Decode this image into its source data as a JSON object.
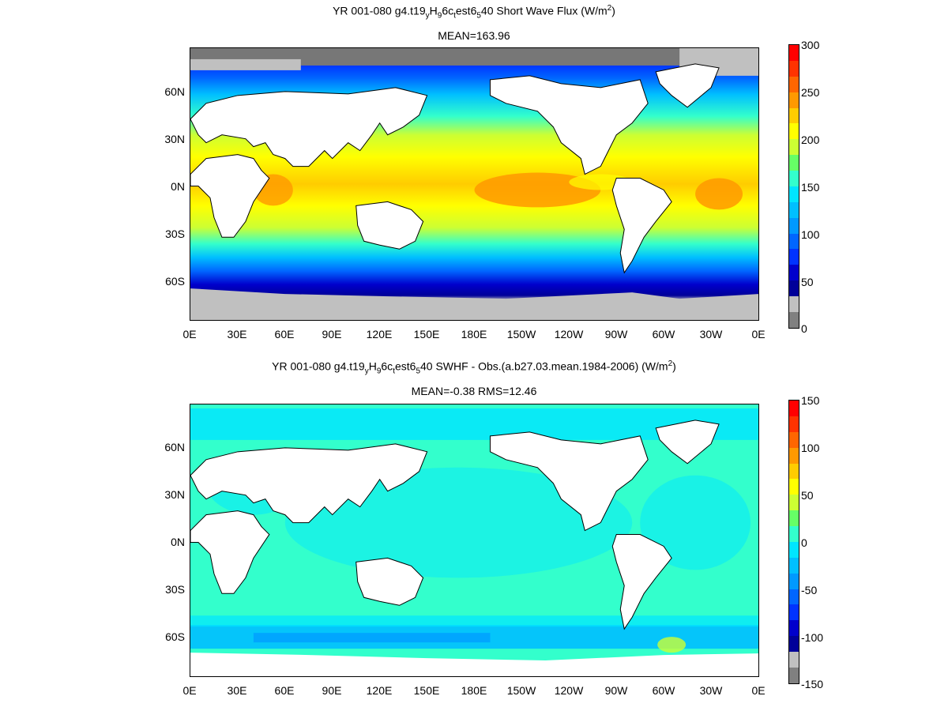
{
  "panel1": {
    "title_parts": [
      "YR 001-080 g4.t19",
      "y",
      "H",
      "9",
      "6c",
      "t",
      "est6",
      "5",
      "40  Short Wave Flux (W/m",
      "2",
      ")"
    ],
    "subtitle": "MEAN=163.96",
    "colorbar_labels": [
      "300",
      "250",
      "200",
      "150",
      "100",
      "50",
      "0"
    ],
    "colors": [
      "#ff0000",
      "#ff3300",
      "#ff6600",
      "#ff9900",
      "#ffcc00",
      "#ffff00",
      "#ccff33",
      "#66ff66",
      "#33ffcc",
      "#00e5ff",
      "#00bfff",
      "#0099ff",
      "#0066ff",
      "#0033ff",
      "#0000cc",
      "#000099",
      "#c0c0c0",
      "#808080"
    ]
  },
  "panel2": {
    "title_parts": [
      "YR 001-080 g4.t19",
      "y",
      "H",
      "9",
      "6c",
      "t",
      "est6",
      "5",
      "40 SWHF - Obs.(a.b27.03.mean.1984-2006) (W/m",
      "2",
      ")"
    ],
    "subtitle": "MEAN=-0.38 RMS=12.46",
    "colorbar_labels": [
      "150",
      "100",
      "50",
      "0",
      "-50",
      "-100",
      "-150"
    ],
    "colors": [
      "#ff0000",
      "#ff3300",
      "#ff6600",
      "#ff9900",
      "#ffcc00",
      "#ffff00",
      "#ccff33",
      "#66ff66",
      "#33ffcc",
      "#00e5ff",
      "#00bfff",
      "#0099ff",
      "#0066ff",
      "#0033ff",
      "#0000cc",
      "#000099",
      "#c0c0c0",
      "#808080"
    ]
  },
  "lon_labels": [
    "0E",
    "30E",
    "60E",
    "90E",
    "120E",
    "150E",
    "180E",
    "150W",
    "120W",
    "90W",
    "60W",
    "30W",
    "0E"
  ],
  "lat_labels": [
    "60N",
    "30N",
    "0N",
    "30S",
    "60S"
  ],
  "map_colors": {
    "land": "#ffffff",
    "sea_ice_dark": "#777777",
    "sea_ice_light": "#c0c0c0",
    "coast": "#000000"
  }
}
